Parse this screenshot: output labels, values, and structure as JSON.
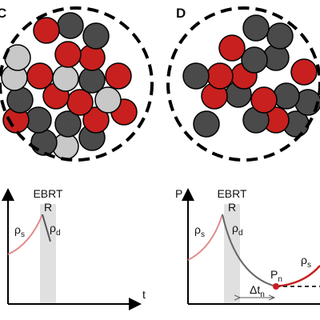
{
  "panels": [
    {
      "label": "C",
      "ebrt": "EBRT",
      "r": "R",
      "rho": "ρ",
      "s": "s",
      "d": "d",
      "xaxis": "t"
    },
    {
      "label": "D",
      "ebrt": "EBRT",
      "r": "R",
      "rho": "ρ",
      "s": "s",
      "d": "d",
      "yaxis": "P",
      "p": "P",
      "n": "n",
      "delta": "Δt",
      "n2": "n",
      "rho2": "ρ",
      "s2": "s"
    }
  ]
}
